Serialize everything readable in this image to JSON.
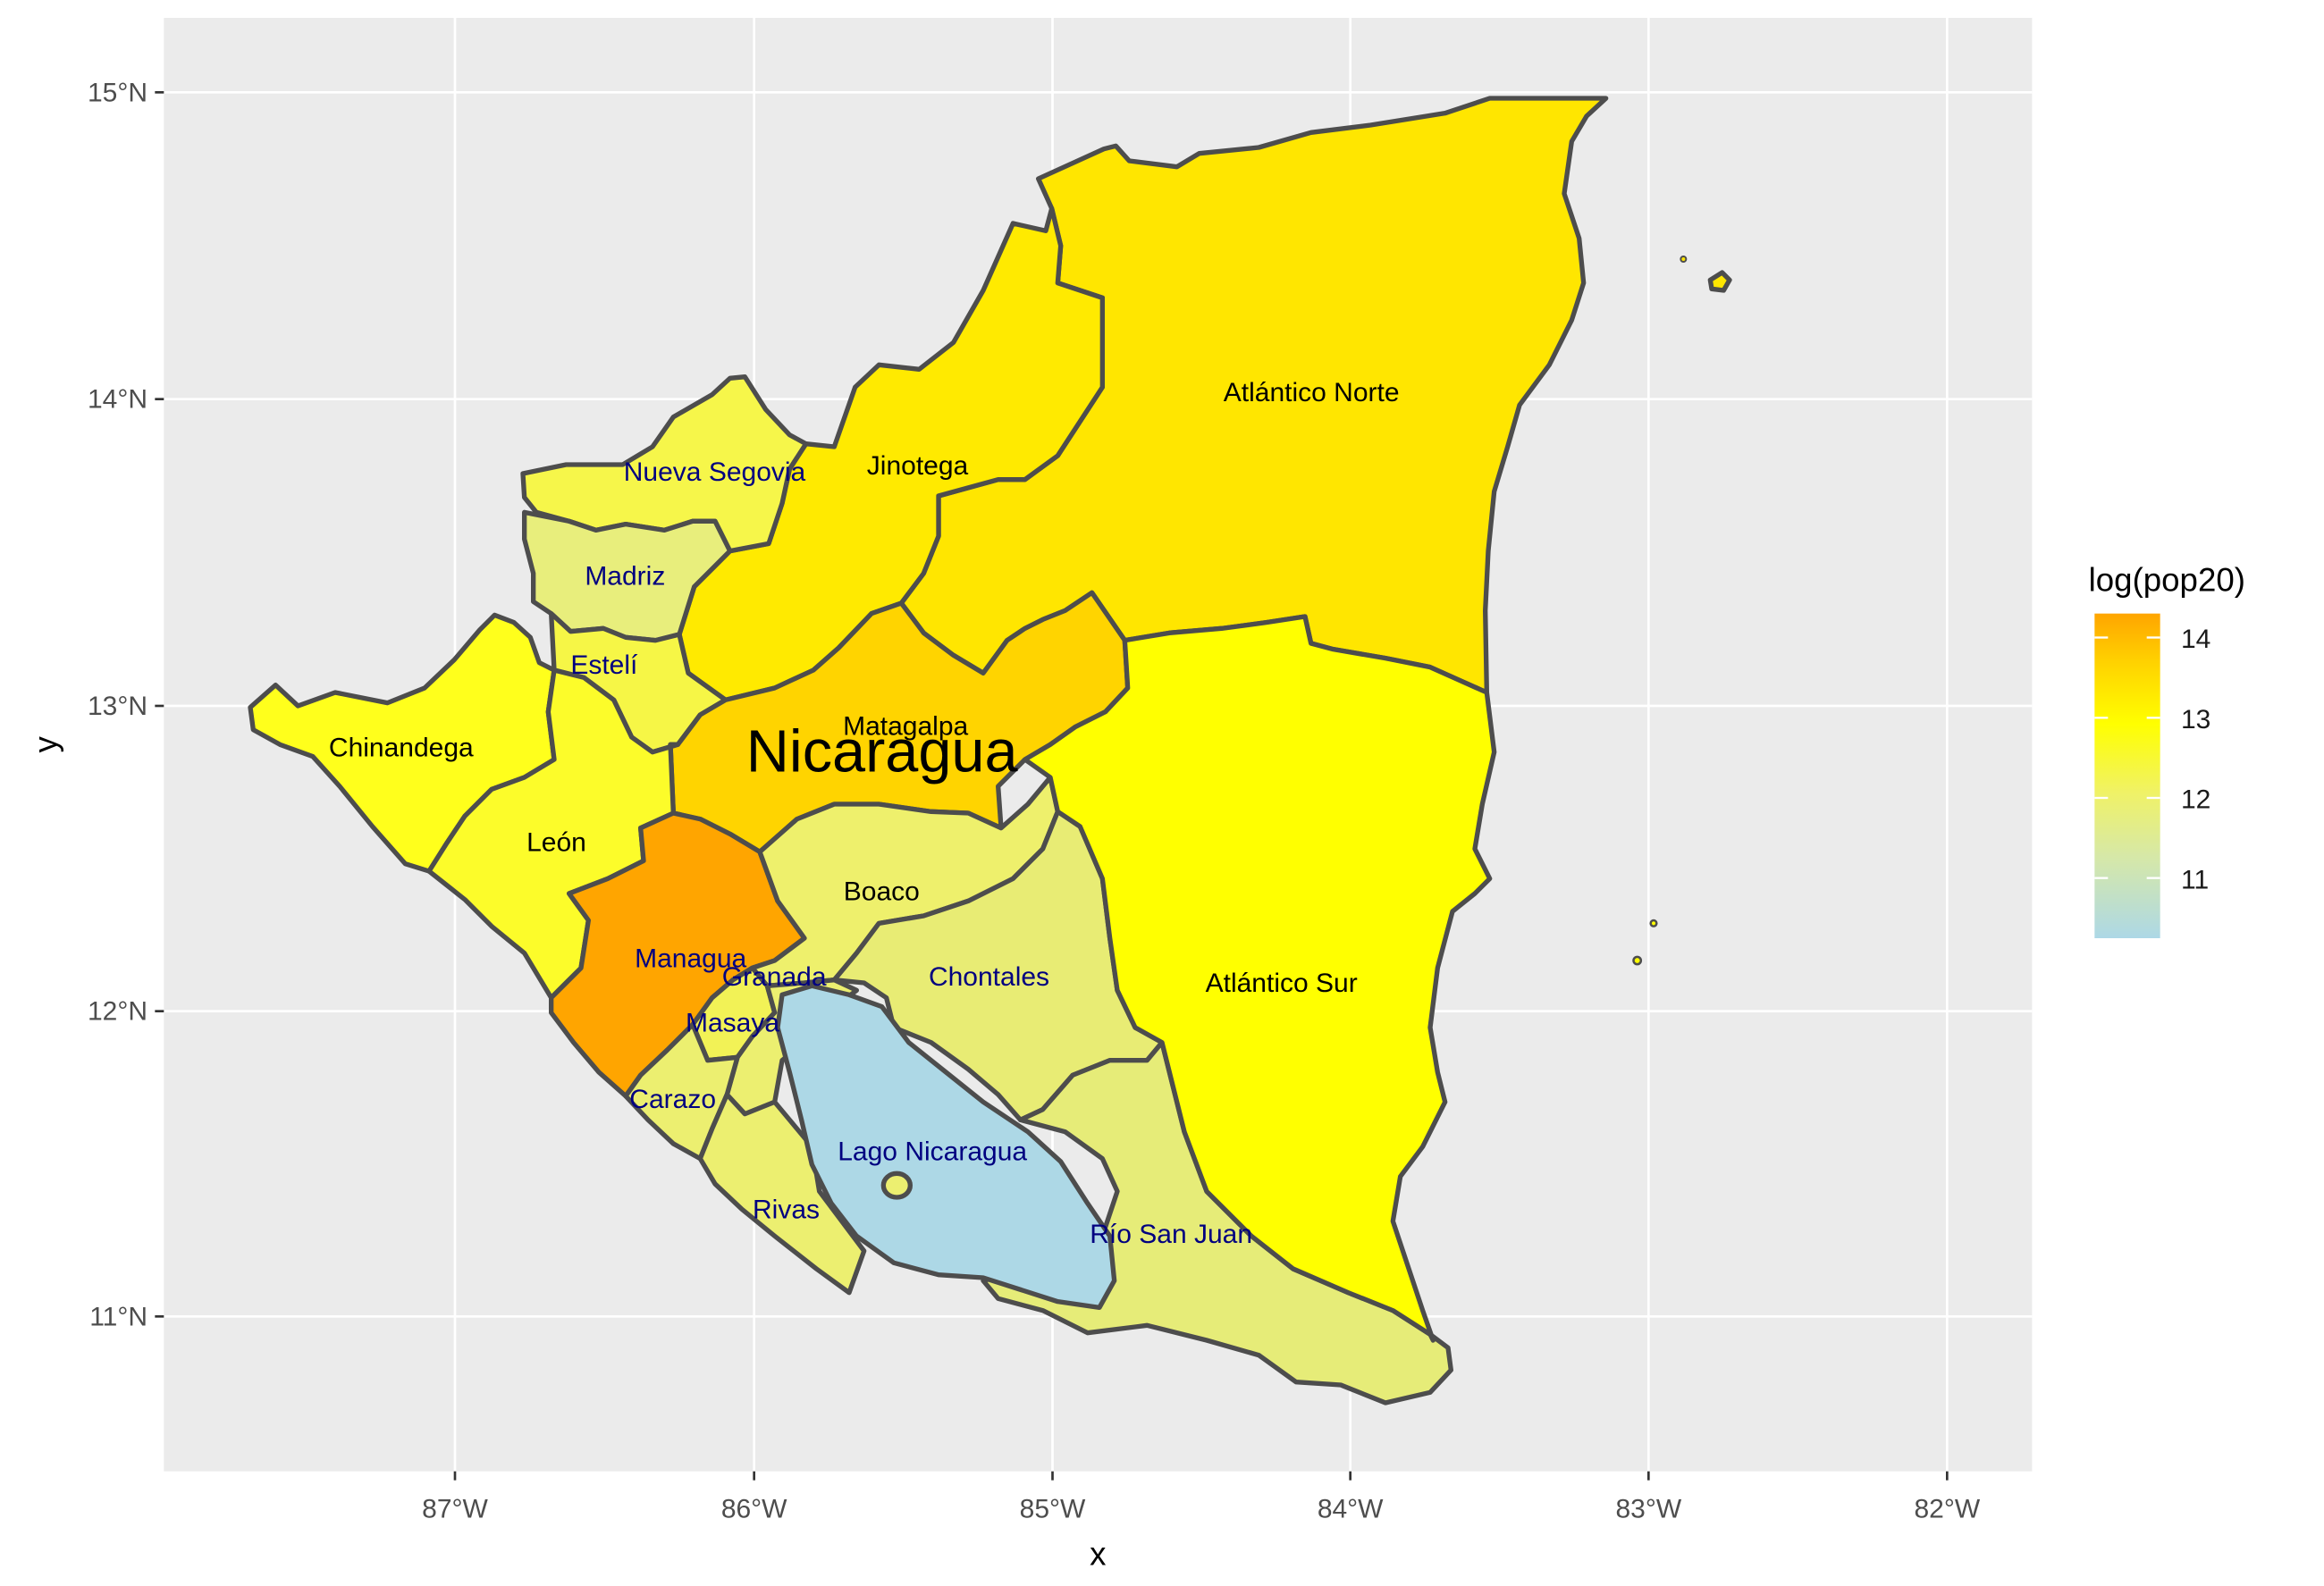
{
  "chart_data": {
    "type": "choropleth",
    "title": "",
    "xlabel": "x",
    "ylabel": "y",
    "x_ticks": [
      "87°W",
      "86°W",
      "85°W",
      "84°W",
      "83°W",
      "82°W"
    ],
    "y_ticks": [
      "15°N",
      "14°N",
      "13°N",
      "12°N",
      "11°N"
    ],
    "xlim": [
      -88.0,
      -81.7
    ],
    "ylim": [
      10.5,
      15.25
    ],
    "grid": true,
    "legend": {
      "title": "log(pop20)",
      "placement": "right",
      "ticks": [
        "14",
        "13",
        "12",
        "11"
      ],
      "tick_values": [
        14,
        13,
        12,
        11
      ],
      "range": [
        10.25,
        14.3
      ],
      "colors": {
        "low": "#add8e6",
        "mid": "#ffff00",
        "high": "#ffa500"
      }
    },
    "country_label": "Nicaragua",
    "regions": [
      {
        "name": "Atlántico Norte",
        "value": 13.2,
        "color": "#ffe600"
      },
      {
        "name": "Atlántico Sur",
        "value": 12.95,
        "color": "#ffff00"
      },
      {
        "name": "Jinotega",
        "value": 13.1,
        "color": "#ffea00"
      },
      {
        "name": "Matagalpa",
        "value": 13.4,
        "color": "#ffd400"
      },
      {
        "name": "Nueva Segovia",
        "value": 12.35,
        "color": "#f6f64a"
      },
      {
        "name": "Madriz",
        "value": 11.95,
        "color": "#e8ee7c"
      },
      {
        "name": "Estelí",
        "value": 12.35,
        "color": "#f6f646"
      },
      {
        "name": "Chinandega",
        "value": 12.9,
        "color": "#ffff1c"
      },
      {
        "name": "León",
        "value": 12.85,
        "color": "#fcfc2a"
      },
      {
        "name": "Managua",
        "value": 14.2,
        "color": "#ffa500"
      },
      {
        "name": "Masaya",
        "value": 12.35,
        "color": "#f2f256"
      },
      {
        "name": "Granada",
        "value": 12.05,
        "color": "#ecef70"
      },
      {
        "name": "Carazo",
        "value": 12.05,
        "color": "#ecef70"
      },
      {
        "name": "Rivas",
        "value": 12.05,
        "color": "#ecef70"
      },
      {
        "name": "Boaco",
        "value": 12.05,
        "color": "#eef06c"
      },
      {
        "name": "Chontales",
        "value": 12.05,
        "color": "#e8ec74"
      },
      {
        "name": "Río San Juan",
        "value": 11.7,
        "color": "#e6ec78"
      },
      {
        "name": "Lago Nicaragua",
        "value": 10.3,
        "color": "#add8e6"
      }
    ],
    "label_positions_lonlat": [
      {
        "name": "Atlántico Norte",
        "lon": -84.13,
        "lat": 14.02,
        "color": "#000000"
      },
      {
        "name": "Atlántico Sur",
        "lon": -84.23,
        "lat": 12.09,
        "color": "#000000"
      },
      {
        "name": "Jinotega",
        "lon": -85.45,
        "lat": 13.78,
        "color": "#000000"
      },
      {
        "name": "Matagalpa",
        "lon": -85.49,
        "lat": 12.93,
        "color": "#000000"
      },
      {
        "name": "Nueva Segovia",
        "lon": -86.13,
        "lat": 13.76,
        "color": "#000080"
      },
      {
        "name": "Madriz",
        "lon": -86.43,
        "lat": 13.42,
        "color": "#000080"
      },
      {
        "name": "Estelí",
        "lon": -86.5,
        "lat": 13.13,
        "color": "#000080"
      },
      {
        "name": "Chinandega",
        "lon": -87.18,
        "lat": 12.86,
        "color": "#000000"
      },
      {
        "name": "León",
        "lon": -86.66,
        "lat": 12.55,
        "color": "#000000"
      },
      {
        "name": "Managua",
        "lon": -86.21,
        "lat": 12.17,
        "color": "#000080"
      },
      {
        "name": "Masaya",
        "lon": -86.07,
        "lat": 11.96,
        "color": "#000080"
      },
      {
        "name": "Granada",
        "lon": -85.93,
        "lat": 12.11,
        "color": "#000080"
      },
      {
        "name": "Carazo",
        "lon": -86.27,
        "lat": 11.71,
        "color": "#000080"
      },
      {
        "name": "Rivas",
        "lon": -85.89,
        "lat": 11.35,
        "color": "#000080"
      },
      {
        "name": "Boaco",
        "lon": -85.57,
        "lat": 12.39,
        "color": "#000000"
      },
      {
        "name": "Chontales",
        "lon": -85.21,
        "lat": 12.11,
        "color": "#000080"
      },
      {
        "name": "Río San Juan",
        "lon": -84.6,
        "lat": 11.27,
        "color": "#000080"
      },
      {
        "name": "Lago Nicaragua",
        "lon": -85.4,
        "lat": 11.54,
        "color": "#000080"
      }
    ]
  }
}
